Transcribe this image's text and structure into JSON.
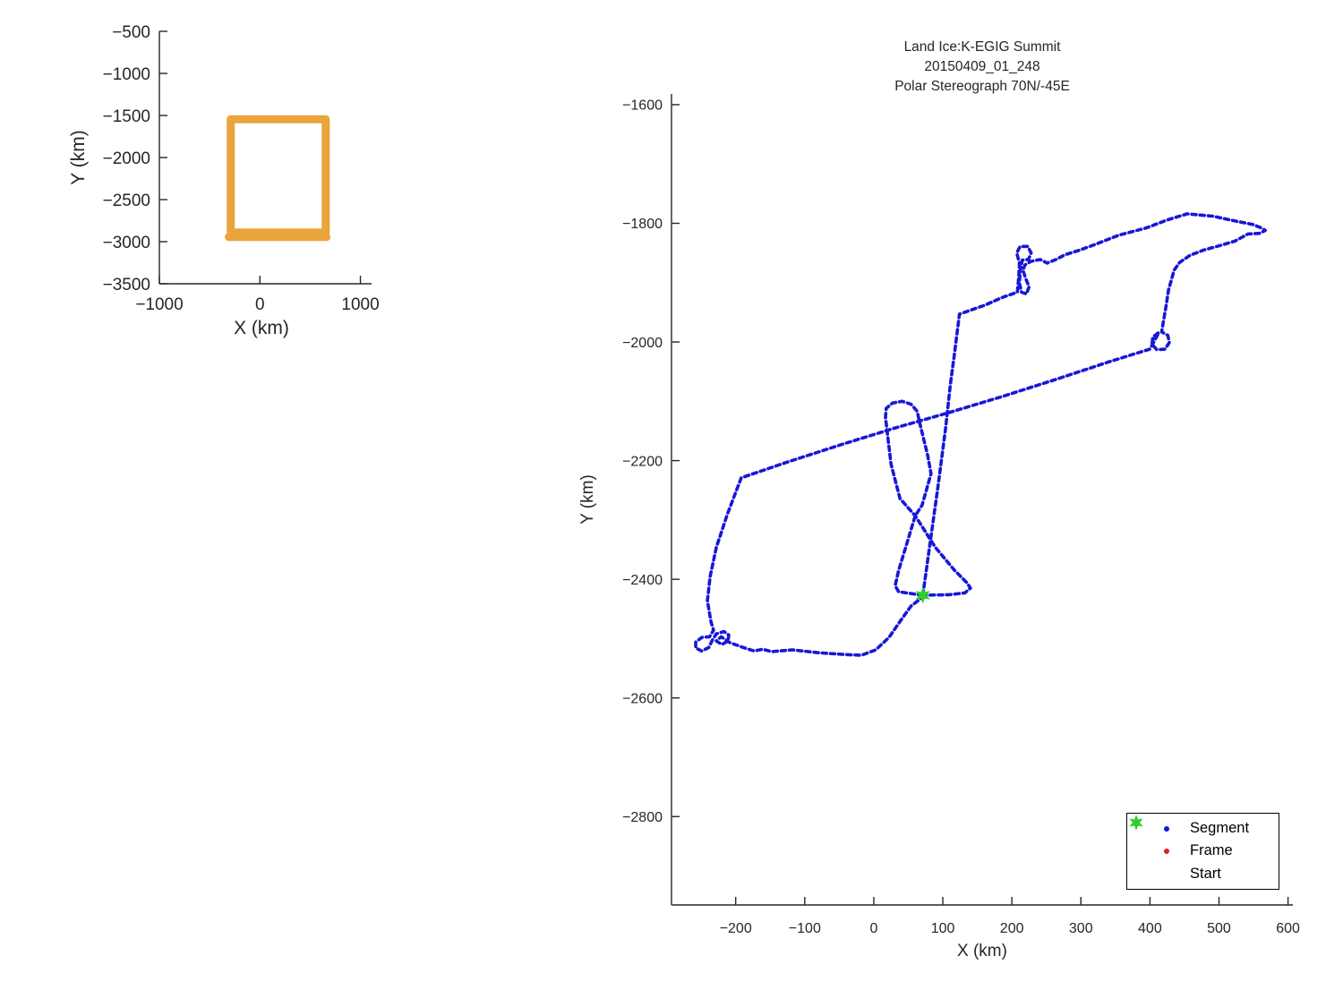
{
  "figure": {
    "background": "#ffffff",
    "axis_color": "#262626",
    "text_color": "#262626"
  },
  "chart_data": [
    {
      "id": "coverage-inset",
      "type": "line",
      "title": "",
      "xlabel": "X (km)",
      "ylabel": "Y (km)",
      "xlim": [
        -1000,
        1111
      ],
      "ylim": [
        -3500,
        -500
      ],
      "xticks": [
        -1000,
        0,
        1000
      ],
      "yticks": [
        -500,
        -1000,
        -1500,
        -2000,
        -2500,
        -3000,
        -3500
      ],
      "grid": false,
      "line_color": "#E9A43C",
      "line_width": 9,
      "series": [
        {
          "name": "track-extent-box",
          "points": [
            [
              -290,
              -1545
            ],
            [
              655,
              -1545
            ],
            [
              655,
              -2890
            ],
            [
              -290,
              -2890
            ],
            [
              -290,
              -1545
            ]
          ]
        },
        {
          "name": "track-extent-bottom-pass",
          "points": [
            [
              -310,
              -2945
            ],
            [
              662,
              -2945
            ]
          ]
        }
      ]
    },
    {
      "id": "flight-track",
      "type": "line",
      "title_lines": [
        "Land Ice:K-EGIG Summit",
        "20150409_01_248",
        "Polar Stereograph 70N/-45E"
      ],
      "xlabel": "X (km)",
      "ylabel": "Y (km)",
      "xlim": [
        -293,
        607
      ],
      "ylim": [
        -2949,
        -1582
      ],
      "xticks": [
        -200,
        -100,
        0,
        100,
        200,
        300,
        400,
        500,
        600
      ],
      "yticks": [
        -1600,
        -1800,
        -2000,
        -2200,
        -2400,
        -2600,
        -2800
      ],
      "grid": false,
      "line_color": "#1717D6",
      "line_width": 3.6,
      "dash": "5 4.2",
      "legend": [
        {
          "label": "Segment",
          "marker": "dot",
          "color": "#1717D6"
        },
        {
          "label": "Frame",
          "marker": "dot",
          "color": "#D92121"
        },
        {
          "label": "Start",
          "marker": "hexagram",
          "color": "#2FCE2F"
        }
      ],
      "start_marker": {
        "x": 71,
        "y": -2427,
        "color": "#2FCE2F",
        "shape": "hexagram"
      },
      "segments": [
        {
          "name": "survey-loop-track",
          "points": [
            [
              71,
              -2427
            ],
            [
              93,
              -2244
            ],
            [
              104,
              -2146
            ],
            [
              111,
              -2071
            ],
            [
              117,
              -2018
            ],
            [
              124,
              -1953
            ],
            [
              161,
              -1938
            ],
            [
              186,
              -1925
            ],
            [
              208,
              -1916
            ],
            [
              210,
              -1889
            ],
            [
              211,
              -1867
            ],
            [
              207,
              -1850
            ],
            [
              212,
              -1839
            ],
            [
              223,
              -1839
            ],
            [
              228,
              -1850
            ],
            [
              224,
              -1861
            ],
            [
              215,
              -1862
            ],
            [
              212,
              -1882
            ],
            [
              211,
              -1901
            ],
            [
              214,
              -1916
            ],
            [
              221,
              -1919
            ],
            [
              225,
              -1907
            ],
            [
              220,
              -1893
            ],
            [
              216,
              -1879
            ],
            [
              219,
              -1870
            ],
            [
              228,
              -1864
            ],
            [
              241,
              -1861
            ],
            [
              251,
              -1867
            ],
            [
              264,
              -1861
            ],
            [
              277,
              -1853
            ],
            [
              296,
              -1846
            ],
            [
              322,
              -1835
            ],
            [
              355,
              -1820
            ],
            [
              394,
              -1808
            ],
            [
              426,
              -1794
            ],
            [
              454,
              -1784
            ],
            [
              491,
              -1788
            ],
            [
              523,
              -1796
            ],
            [
              549,
              -1802
            ],
            [
              562,
              -1808
            ],
            [
              567,
              -1812
            ],
            [
              559,
              -1817
            ],
            [
              542,
              -1818
            ],
            [
              523,
              -1830
            ],
            [
              497,
              -1839
            ],
            [
              478,
              -1845
            ],
            [
              458,
              -1854
            ],
            [
              443,
              -1866
            ],
            [
              435,
              -1879
            ],
            [
              427,
              -1912
            ],
            [
              423,
              -1942
            ],
            [
              419,
              -1969
            ],
            [
              417,
              -1983
            ],
            [
              426,
              -1989
            ],
            [
              428,
              -2001
            ],
            [
              422,
              -2012
            ],
            [
              410,
              -2013
            ],
            [
              403,
              -2004
            ],
            [
              404,
              -1992
            ],
            [
              413,
              -1984
            ],
            [
              400,
              -2012
            ],
            [
              342,
              -2033
            ],
            [
              264,
              -2063
            ],
            [
              186,
              -2092
            ],
            [
              109,
              -2119
            ],
            [
              31,
              -2145
            ],
            [
              -47,
              -2173
            ],
            [
              -124,
              -2202
            ],
            [
              -192,
              -2229
            ],
            [
              -212,
              -2290
            ],
            [
              -228,
              -2346
            ],
            [
              -237,
              -2395
            ],
            [
              -241,
              -2436
            ],
            [
              -236,
              -2471
            ],
            [
              -232,
              -2486
            ],
            [
              -238,
              -2497
            ],
            [
              -249,
              -2498
            ],
            [
              -258,
              -2506
            ],
            [
              -258,
              -2516
            ],
            [
              -249,
              -2521
            ],
            [
              -239,
              -2515
            ],
            [
              -234,
              -2503
            ],
            [
              -228,
              -2492
            ],
            [
              -217,
              -2488
            ],
            [
              -210,
              -2494
            ],
            [
              -211,
              -2504
            ],
            [
              -220,
              -2510
            ],
            [
              -228,
              -2504
            ],
            [
              -221,
              -2497
            ],
            [
              -208,
              -2507
            ],
            [
              -189,
              -2515
            ],
            [
              -173,
              -2521
            ],
            [
              -161,
              -2518
            ],
            [
              -148,
              -2522
            ],
            [
              -118,
              -2519
            ],
            [
              -79,
              -2524
            ],
            [
              -40,
              -2527
            ],
            [
              -18,
              -2528
            ],
            [
              3,
              -2519
            ],
            [
              22,
              -2498
            ],
            [
              41,
              -2466
            ],
            [
              54,
              -2445
            ],
            [
              71,
              -2430
            ]
          ]
        },
        {
          "name": "summit-bowtie-track",
          "points": [
            [
              71,
              -2427
            ],
            [
              36,
              -2421
            ],
            [
              31,
              -2411
            ],
            [
              36,
              -2385
            ],
            [
              47,
              -2343
            ],
            [
              60,
              -2293
            ],
            [
              70,
              -2275
            ],
            [
              83,
              -2222
            ],
            [
              78,
              -2191
            ],
            [
              66,
              -2134
            ],
            [
              63,
              -2117
            ],
            [
              54,
              -2105
            ],
            [
              41,
              -2100
            ],
            [
              27,
              -2103
            ],
            [
              18,
              -2112
            ],
            [
              17,
              -2127
            ],
            [
              25,
              -2206
            ],
            [
              38,
              -2264
            ],
            [
              60,
              -2293
            ],
            [
              89,
              -2346
            ],
            [
              117,
              -2385
            ],
            [
              135,
              -2406
            ],
            [
              140,
              -2415
            ],
            [
              132,
              -2423
            ],
            [
              109,
              -2426
            ],
            [
              71,
              -2427
            ]
          ]
        }
      ]
    }
  ]
}
